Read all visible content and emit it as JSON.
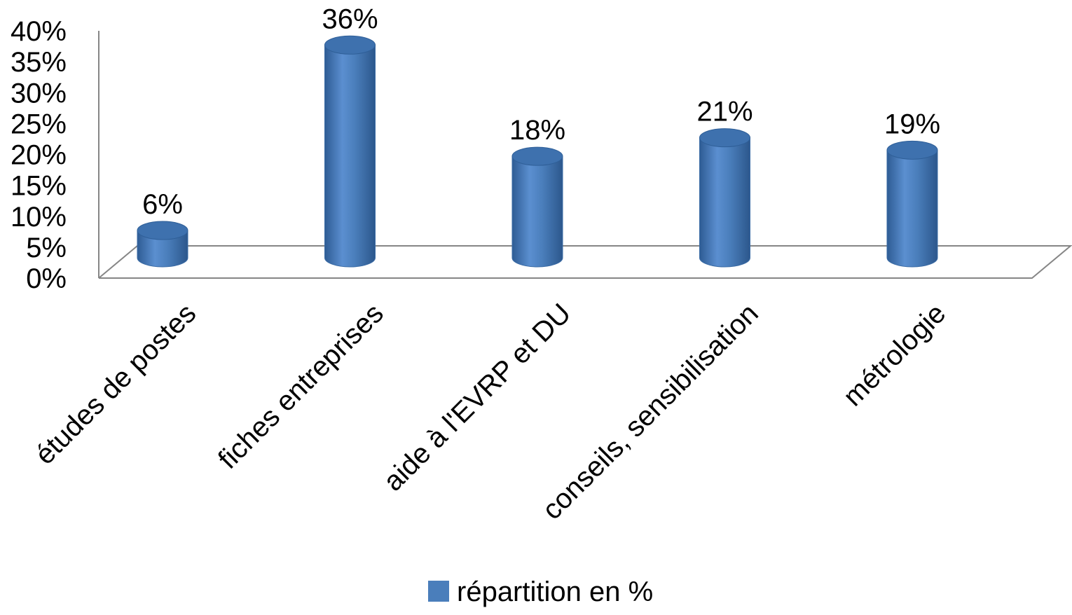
{
  "chart_data": {
    "type": "bar",
    "title": "",
    "xlabel": "",
    "ylabel": "",
    "categories": [
      "études de postes",
      "fiches entreprises",
      "aide à l'EVRP et DU",
      "conseils, sensibilisation",
      "métrologie"
    ],
    "series": [
      {
        "name": "répartition en %",
        "values": [
          6,
          36,
          18,
          21,
          19
        ],
        "color": "#4A7EBB"
      }
    ],
    "data_labels": [
      "6%",
      "36%",
      "18%",
      "21%",
      "19%"
    ],
    "ylim": [
      0,
      40
    ],
    "yticks": [
      "0%",
      "5%",
      "10%",
      "15%",
      "20%",
      "25%",
      "30%",
      "35%",
      "40%"
    ],
    "grid": false,
    "legend_position": "bottom",
    "style": "3d-cylinder"
  }
}
